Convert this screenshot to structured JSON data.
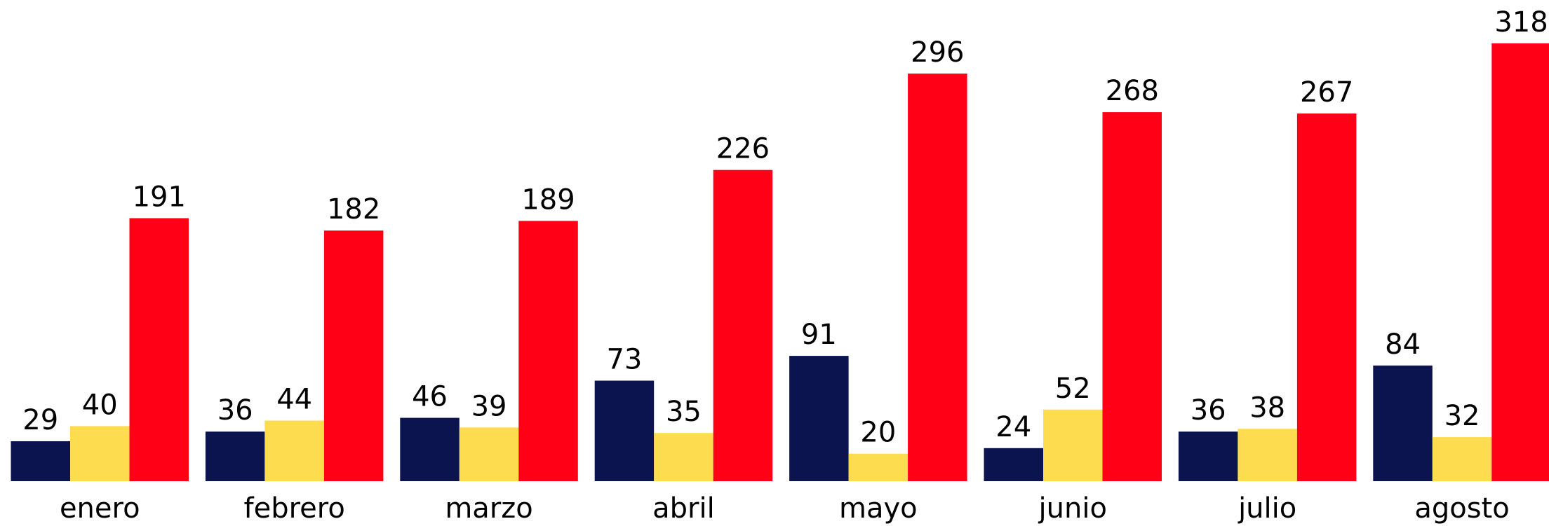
{
  "chart_data": {
    "type": "bar",
    "categories": [
      "enero",
      "febrero",
      "marzo",
      "abril",
      "mayo",
      "junio",
      "julio",
      "agosto"
    ],
    "series": [
      {
        "color": "#0c1450",
        "values": [
          29,
          36,
          46,
          73,
          91,
          24,
          36,
          84
        ]
      },
      {
        "color": "#fddc4f",
        "values": [
          40,
          44,
          39,
          35,
          20,
          52,
          38,
          32
        ]
      },
      {
        "color": "#ff0016",
        "values": [
          191,
          182,
          189,
          226,
          296,
          268,
          267,
          318
        ]
      }
    ],
    "ylim": [
      0,
      340
    ]
  }
}
